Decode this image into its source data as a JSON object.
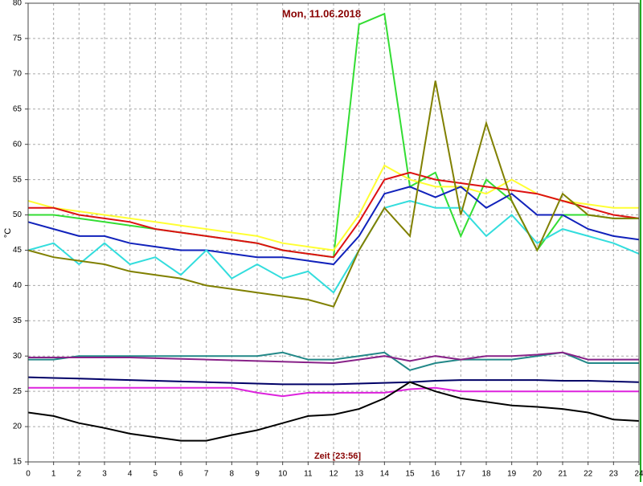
{
  "chart_data": {
    "type": "line",
    "title": "Mon, 11.06.2018",
    "x_label": "Zeit [23:56]",
    "y_label": "°C",
    "x": [
      0,
      1,
      2,
      3,
      4,
      5,
      6,
      7,
      8,
      9,
      10,
      11,
      12,
      13,
      14,
      15,
      16,
      17,
      18,
      19,
      20,
      21,
      22,
      23,
      24
    ],
    "xlim": [
      0,
      24
    ],
    "xticks": [
      0,
      1,
      2,
      3,
      4,
      5,
      6,
      7,
      8,
      9,
      10,
      11,
      12,
      13,
      14,
      15,
      16,
      17,
      18,
      19,
      20,
      21,
      22,
      23,
      24
    ],
    "ylim": [
      15,
      80
    ],
    "yticks": [
      15,
      20,
      25,
      30,
      35,
      40,
      45,
      50,
      55,
      60,
      65,
      70,
      75,
      80
    ],
    "grid": true,
    "series": [
      {
        "color": "#33dd33",
        "values": [
          50,
          50,
          49.5,
          49,
          48.5,
          48,
          47.5,
          47,
          46.5,
          46,
          45,
          44.5,
          44,
          77,
          78.5,
          54,
          56,
          47,
          55,
          52,
          45,
          50,
          50,
          49.5,
          49.5
        ]
      },
      {
        "color": "#ffff33",
        "values": [
          52,
          51,
          50.5,
          50,
          49.5,
          49,
          48.5,
          48,
          47.5,
          47,
          46,
          45.5,
          45,
          50,
          57,
          55,
          54,
          54,
          53,
          55,
          53,
          52,
          51.5,
          51,
          51
        ]
      },
      {
        "color": "#dd1111",
        "values": [
          51,
          51,
          50,
          49.5,
          49,
          48,
          47.5,
          47,
          46.5,
          46,
          45,
          44.5,
          44,
          49,
          55,
          56,
          55,
          54.5,
          54,
          53.5,
          53,
          52,
          51,
          50,
          49.5
        ]
      },
      {
        "color": "#1122bb",
        "values": [
          49,
          48,
          47,
          47,
          46,
          45.5,
          45,
          45,
          44.5,
          44,
          44,
          43.5,
          43,
          47,
          53,
          54,
          52.5,
          54,
          51,
          53,
          50,
          50,
          48,
          47,
          46.5
        ]
      },
      {
        "color": "#33dddd",
        "values": [
          45,
          46,
          43,
          46,
          43,
          44,
          41.5,
          45,
          41,
          43,
          41,
          42,
          39,
          45,
          51,
          52,
          51,
          51,
          47,
          50,
          46,
          48,
          47,
          46,
          44.5
        ]
      },
      {
        "color": "#808000",
        "values": [
          45,
          44,
          43.5,
          43,
          42,
          41.5,
          41,
          40,
          39.5,
          39,
          38.5,
          38,
          37,
          45,
          51,
          47,
          69,
          50,
          63,
          52,
          45,
          53,
          50,
          49.5,
          49.5
        ]
      },
      {
        "color": "#228888",
        "values": [
          29.5,
          29.5,
          30,
          30,
          30,
          30,
          30,
          30,
          30,
          30,
          30.5,
          29.5,
          29.5,
          30,
          30.5,
          28,
          29,
          29.5,
          29.5,
          29.5,
          30,
          30.5,
          29,
          29,
          29
        ]
      },
      {
        "color": "#882288",
        "values": [
          29.8,
          29.8,
          29.8,
          29.8,
          29.8,
          29.7,
          29.6,
          29.5,
          29.4,
          29.3,
          29.2,
          29.1,
          29,
          29.5,
          30,
          29.3,
          30,
          29.5,
          30,
          30,
          30.2,
          30.5,
          29.5,
          29.5,
          29.5
        ]
      },
      {
        "color": "#000066",
        "values": [
          27,
          26.9,
          26.8,
          26.7,
          26.6,
          26.5,
          26.4,
          26.3,
          26.2,
          26.1,
          26,
          26,
          26,
          26.1,
          26.2,
          26.3,
          26.5,
          26.6,
          26.6,
          26.6,
          26.6,
          26.5,
          26.5,
          26.4,
          26.3
        ]
      },
      {
        "color": "#dd22dd",
        "values": [
          25.5,
          25.5,
          25.5,
          25.5,
          25.5,
          25.5,
          25.5,
          25.5,
          25.5,
          24.8,
          24.3,
          24.8,
          24.8,
          24.8,
          24.8,
          25.3,
          25.5,
          25,
          25,
          25,
          25,
          25,
          25,
          25,
          25
        ]
      },
      {
        "color": "#000000",
        "values": [
          22,
          21.5,
          20.5,
          19.8,
          19,
          18.5,
          18,
          18,
          18.8,
          19.5,
          20.5,
          21.5,
          21.7,
          22.5,
          24,
          26.3,
          25,
          24,
          23.5,
          23,
          22.8,
          22.5,
          22,
          21,
          20.8
        ]
      }
    ]
  }
}
